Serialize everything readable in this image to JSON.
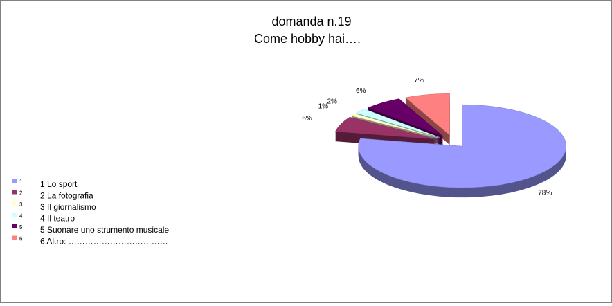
{
  "chart_data": {
    "type": "pie",
    "title": "domanda n.19",
    "subtitle": "Come hobby hai….",
    "categories": [
      "1",
      "2",
      "3",
      "4",
      "5",
      "6"
    ],
    "legend_text": [
      "1 Lo sport",
      " 2 La fotografia",
      "3 Il giornalismo",
      " 4 Il teatro",
      "5 Suonare uno strumento musicale",
      "6 Altro: ………………………………"
    ],
    "values": [
      78,
      6,
      1,
      2,
      6,
      7
    ],
    "value_labels": [
      "78%",
      "6%",
      "1%",
      "2%",
      "6%",
      "7%"
    ],
    "colors": [
      "#9999ff",
      "#993366",
      "#ffffcc",
      "#ccffff",
      "#660066",
      "#ff8080"
    ],
    "legend": "left"
  }
}
